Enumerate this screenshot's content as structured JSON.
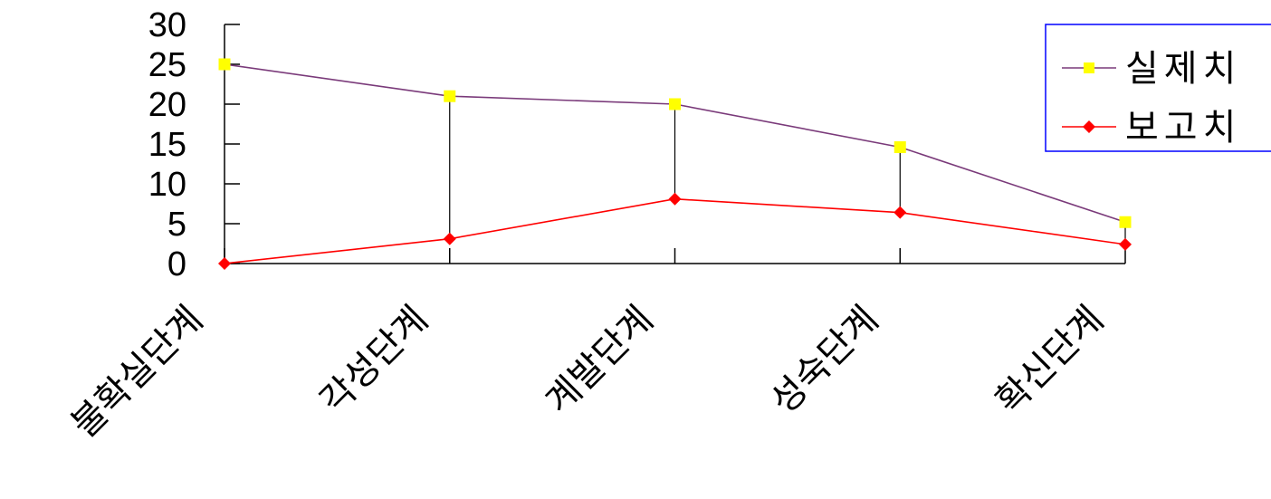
{
  "chart_data": {
    "type": "line",
    "categories": [
      "불확실단계",
      "각성단계",
      "계발단계",
      "성숙단계",
      "확신단계"
    ],
    "series": [
      {
        "name": "실제치",
        "values": [
          25,
          21,
          20,
          14.6,
          5.2
        ],
        "color": "#7a3a7a",
        "marker": "square",
        "marker_color": "#ffff00"
      },
      {
        "name": "보고치",
        "values": [
          0,
          3.1,
          8.1,
          6.4,
          2.4
        ],
        "color": "#ff0000",
        "marker": "diamond",
        "marker_color": "#ff0000"
      }
    ],
    "ylim": [
      0,
      30
    ],
    "yticks": [
      0,
      5,
      10,
      15,
      20,
      25,
      30
    ],
    "drop_lines": true,
    "legend_position": "top-right",
    "legend_border_color": "#0000ff",
    "grid": false
  }
}
